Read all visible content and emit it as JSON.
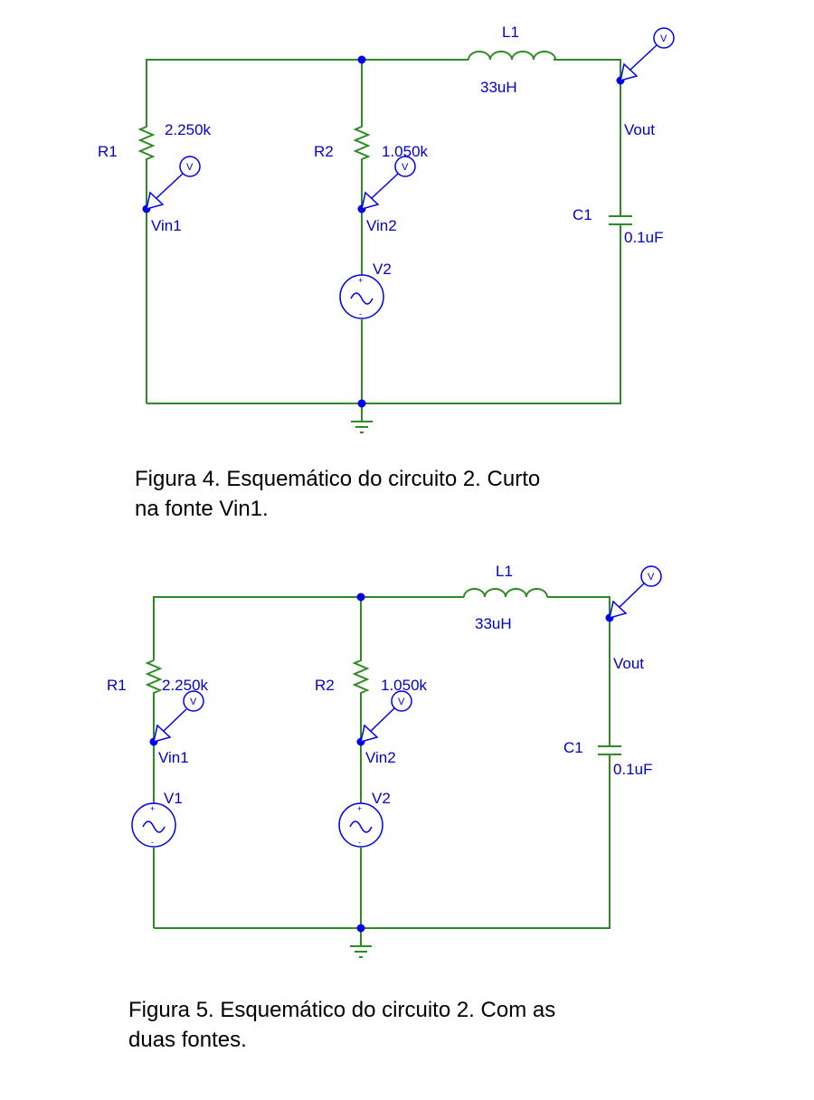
{
  "figure4": {
    "caption_line1": "Figura 4. Esquemático do circuito 2. Curto",
    "caption_line2": "na fonte Vin1.",
    "R1": {
      "name": "R1",
      "value": "2.250k"
    },
    "R2": {
      "name": "R2",
      "value": "1.050k"
    },
    "L1": {
      "name": "L1",
      "value": "33uH"
    },
    "C1": {
      "name": "C1",
      "value": "0.1uF"
    },
    "V2": {
      "name": "V2"
    },
    "nodes": {
      "vin1": "Vin1",
      "vin2": "Vin2",
      "vout": "Vout"
    },
    "probe_letter": "V",
    "plus": "+",
    "minus": "-"
  },
  "figure5": {
    "caption_line1": "Figura 5. Esquemático do circuito 2. Com as",
    "caption_line2": "duas fontes.",
    "R1": {
      "name": "R1",
      "value": "2.250k"
    },
    "R2": {
      "name": "R2",
      "value": "1.050k"
    },
    "L1": {
      "name": "L1",
      "value": "33uH"
    },
    "C1": {
      "name": "C1",
      "value": "0.1uF"
    },
    "V1": {
      "name": "V1"
    },
    "V2": {
      "name": "V2"
    },
    "nodes": {
      "vin1": "Vin1",
      "vin2": "Vin2",
      "vout": "Vout"
    },
    "probe_letter": "V",
    "plus": "+",
    "minus": "-"
  },
  "colors": {
    "wire": "#2e8b24",
    "label": "#0000cc",
    "junction": "#0000ee"
  }
}
